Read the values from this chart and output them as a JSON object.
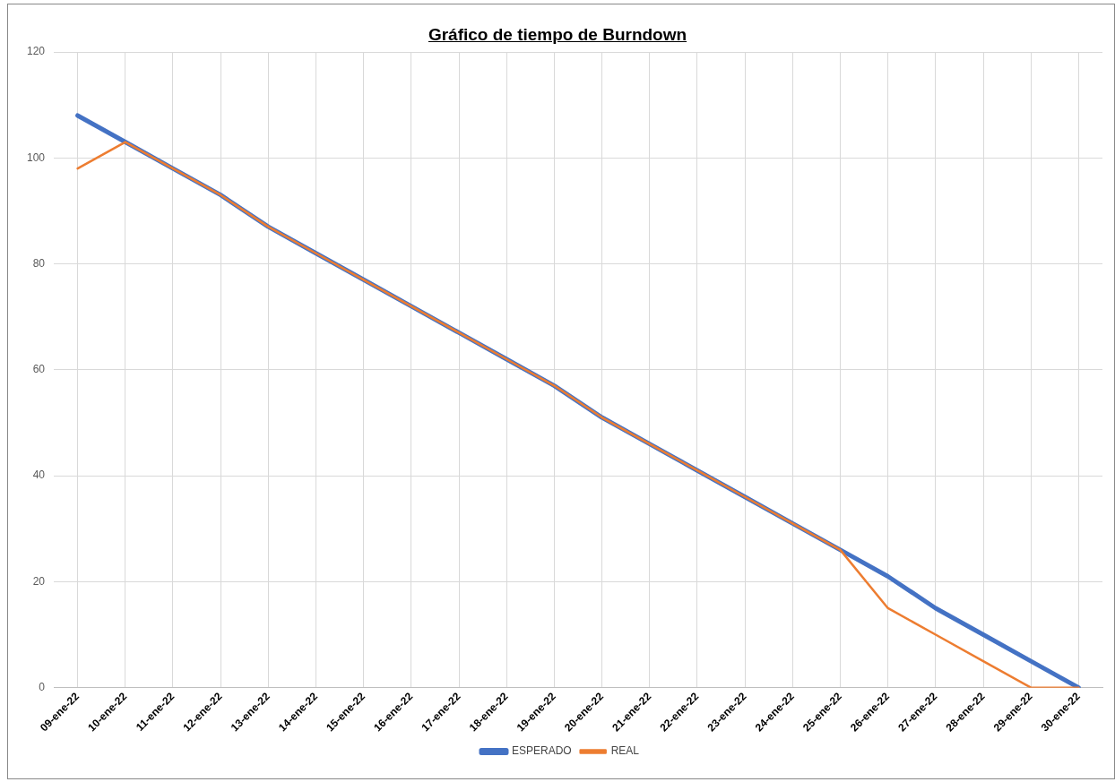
{
  "chart_data": {
    "type": "line",
    "title": "Gráfico  de tiempo de Burndown",
    "categories": [
      "09-ene-22",
      "10-ene-22",
      "11-ene-22",
      "12-ene-22",
      "13-ene-22",
      "14-ene-22",
      "15-ene-22",
      "16-ene-22",
      "17-ene-22",
      "18-ene-22",
      "19-ene-22",
      "20-ene-22",
      "21-ene-22",
      "22-ene-22",
      "23-ene-22",
      "24-ene-22",
      "25-ene-22",
      "26-ene-22",
      "27-ene-22",
      "28-ene-22",
      "29-ene-22",
      "30-ene-22"
    ],
    "series": [
      {
        "name": "ESPERADO",
        "color": "#4472c4",
        "values": [
          108,
          103,
          98,
          93,
          87,
          82,
          77,
          72,
          67,
          62,
          57,
          51,
          46,
          41,
          36,
          31,
          26,
          21,
          15,
          10,
          5,
          0
        ]
      },
      {
        "name": "REAL",
        "color": "#ed7d31",
        "values": [
          98,
          103,
          98,
          93,
          87,
          82,
          77,
          72,
          67,
          62,
          57,
          51,
          46,
          41,
          36,
          31,
          26,
          15,
          10,
          5,
          0,
          0
        ]
      }
    ],
    "ylim": [
      0,
      120
    ],
    "yticks": [
      0,
      20,
      40,
      60,
      80,
      100,
      120
    ],
    "grid": true,
    "legend": "bottom",
    "marker": "none",
    "line_style": "solid"
  }
}
